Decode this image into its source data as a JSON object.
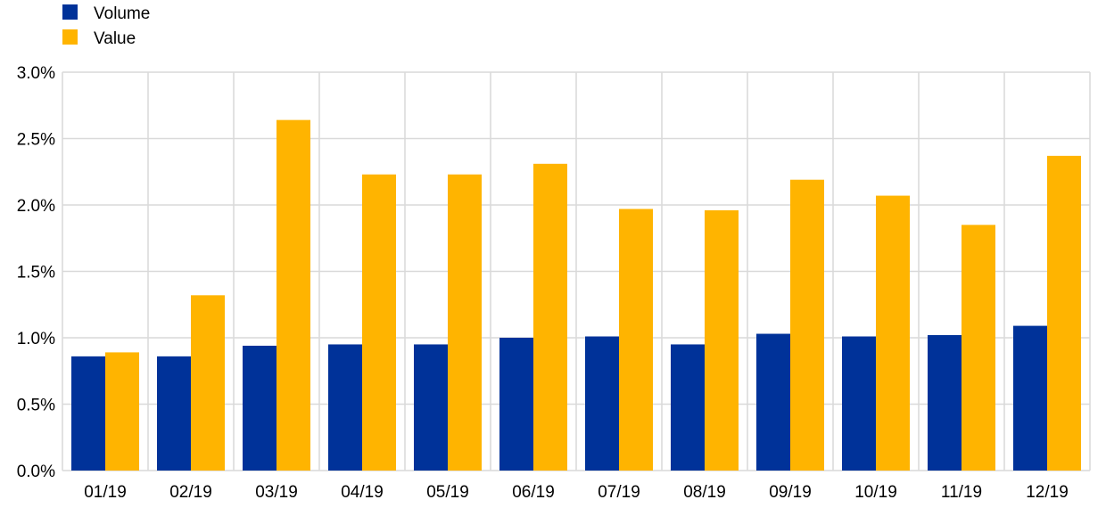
{
  "chart_data": {
    "type": "bar",
    "title": "",
    "xlabel": "",
    "ylabel": "",
    "ylim": [
      0,
      3.0
    ],
    "yticks": [
      "0.0%",
      "0.5%",
      "1.0%",
      "1.5%",
      "2.0%",
      "2.5%",
      "3.0%"
    ],
    "ytick_values": [
      0,
      0.5,
      1.0,
      1.5,
      2.0,
      2.5,
      3.0
    ],
    "grid": true,
    "legend_position": "top-left",
    "categories": [
      "01/19",
      "02/19",
      "03/19",
      "04/19",
      "05/19",
      "06/19",
      "07/19",
      "08/19",
      "09/19",
      "10/19",
      "11/19",
      "12/19"
    ],
    "series": [
      {
        "name": "Volume",
        "color": "#003299",
        "values": [
          0.86,
          0.86,
          0.94,
          0.95,
          0.95,
          1.0,
          1.01,
          0.95,
          1.03,
          1.01,
          1.02,
          1.09
        ]
      },
      {
        "name": "Value",
        "color": "#FFB400",
        "values": [
          0.89,
          1.32,
          2.64,
          2.23,
          2.23,
          2.31,
          1.97,
          1.96,
          2.19,
          2.07,
          1.85,
          2.37
        ]
      }
    ]
  }
}
